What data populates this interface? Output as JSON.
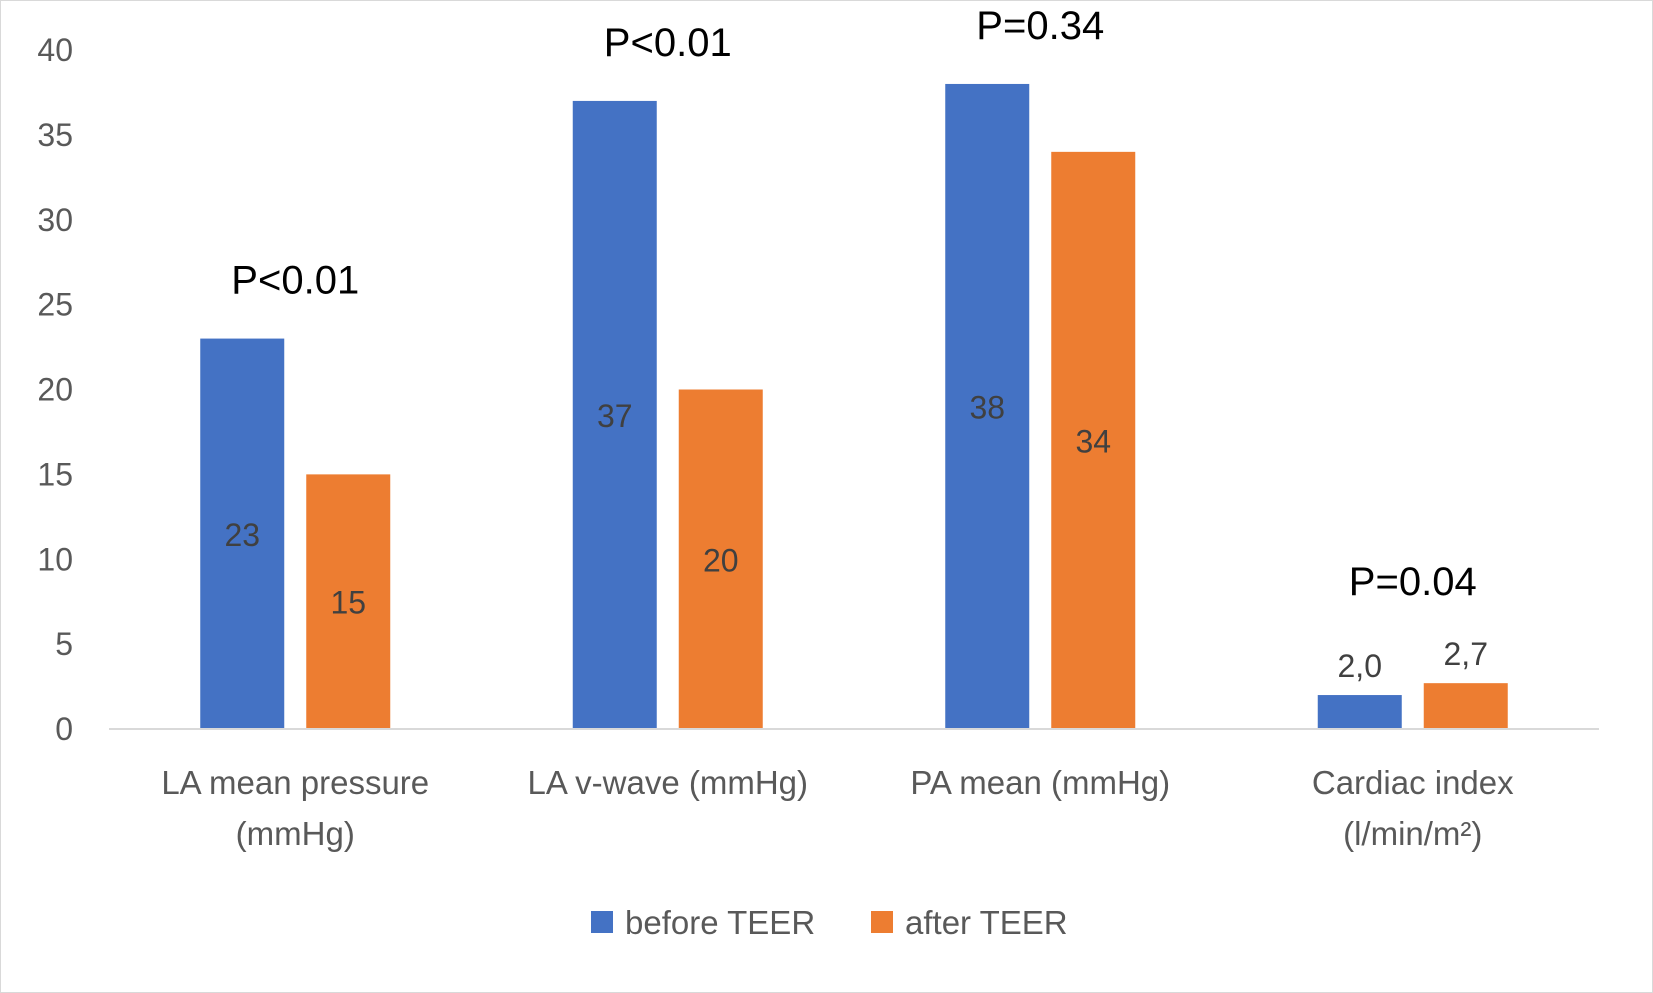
{
  "chart_data": {
    "type": "bar",
    "title": "",
    "xlabel": "",
    "ylabel": "",
    "ylim": [
      0,
      40
    ],
    "yticks": [
      0,
      5,
      10,
      15,
      20,
      25,
      30,
      35,
      40
    ],
    "grid": false,
    "legend_position": "bottom",
    "categories": [
      [
        "LA mean pressure",
        "(mmHg)"
      ],
      [
        "LA v-wave (mmHg)"
      ],
      [
        "PA mean (mmHg)"
      ],
      [
        "Cardiac index",
        "(l/min/m²)"
      ]
    ],
    "series": [
      {
        "name": "before TEER",
        "color": "#4472c4",
        "values": [
          23,
          37,
          38,
          2.0
        ],
        "labels": [
          "23",
          "37",
          "38",
          "2,0"
        ]
      },
      {
        "name": "after TEER",
        "color": "#ed7d31",
        "values": [
          15,
          20,
          34,
          2.7
        ],
        "labels": [
          "15",
          "20",
          "34",
          "2,7"
        ]
      }
    ],
    "p_values": [
      "P<0.01",
      "P<0.01",
      "P=0.34",
      "P=0.04"
    ]
  }
}
